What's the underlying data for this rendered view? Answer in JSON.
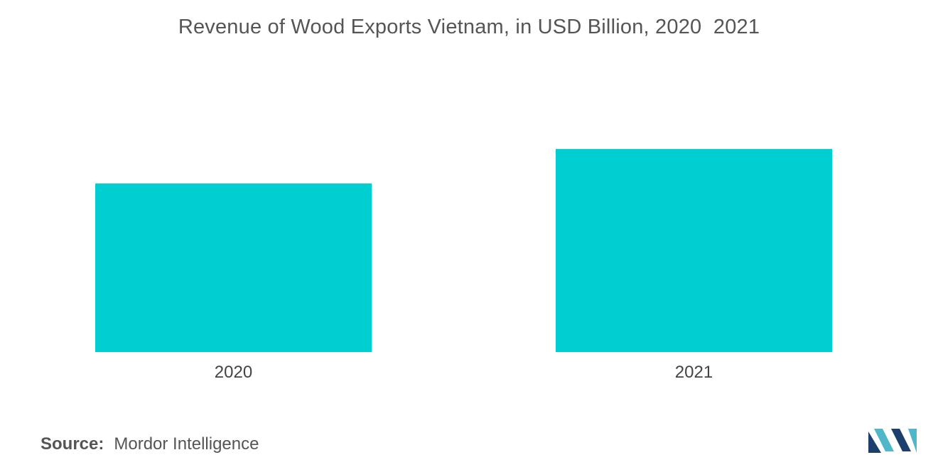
{
  "chart_data": {
    "type": "bar",
    "title": "Revenue of Wood Exports Vietnam, in USD Billion, 2020  2021",
    "categories": [
      "2020",
      "2021"
    ],
    "values": [
      13.2,
      15.9
    ],
    "ylim": [
      0,
      25
    ],
    "xlabel": "",
    "ylabel": "",
    "grid": false,
    "legend": "none",
    "bar_color": "#00CED1"
  },
  "source": {
    "label": "Source:",
    "value": "Mordor Intelligence"
  },
  "logo": {
    "icon": "mordor-intelligence-logo-icon",
    "colors": [
      "#1d3f6e",
      "#4fb7c9"
    ]
  }
}
